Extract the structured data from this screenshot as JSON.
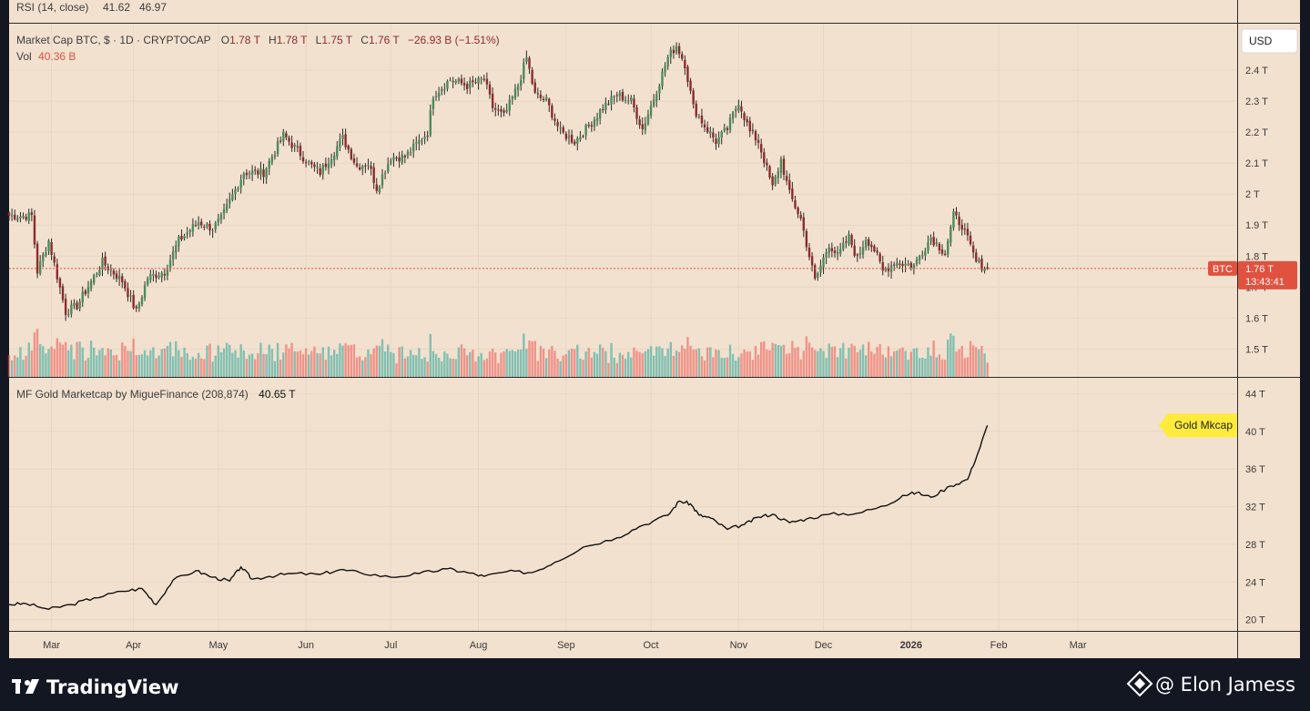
{
  "colors": {
    "background": "#f2e1cf",
    "frame": "#131722",
    "up": "#26a69a",
    "down": "#ef5350",
    "candle_up": "#4a8c5a",
    "candle_down": "#8c2b2b",
    "line": "#111111",
    "badge_btc": "#e0523f",
    "badge_gold": "#ffeb3b",
    "rsi_purple": "#7e57c2",
    "rsi_yellow": "#fbc02d"
  },
  "rsi_header": {
    "label": "RSI (14, close)",
    "value1": "41.62",
    "value2": "46.97"
  },
  "main_legend": {
    "title": "Market Cap BTC, $ · 1D · CRYPTOCAP",
    "o_label": "O",
    "o": "1.78 T",
    "h_label": "H",
    "h": "1.78 T",
    "l_label": "L",
    "l": "1.75 T",
    "c_label": "C",
    "c": "1.76 T",
    "change": "−26.93 B (−1.51%)",
    "vol_label": "Vol",
    "vol_value": "40.36 B"
  },
  "currency_button": "USD",
  "btc_badge": {
    "symbol": "BTC",
    "price": "1.76 T",
    "countdown": "13:43:41"
  },
  "gold_legend": {
    "title": "MF Gold Marketcap by MigueFinance (208,874)",
    "value": "40.65 T"
  },
  "gold_badge": "Gold Mkcap",
  "footer": {
    "brand": "TradingView",
    "credit": "@ Elon Jamess"
  },
  "chart_data": [
    {
      "type": "candlestick",
      "title": "Market Cap BTC, $ · 1D · CRYPTOCAP",
      "unit": "T USD",
      "ylim": [
        1.41,
        2.55
      ],
      "yticks": [
        "2.4 T",
        "2.3 T",
        "2.2 T",
        "2.1 T",
        "2 T",
        "1.9 T",
        "1.8 T",
        "1.7 T",
        "1.6 T",
        "1.5 T"
      ],
      "ytick_values": [
        2.4,
        2.3,
        2.2,
        2.1,
        2.0,
        1.9,
        1.8,
        1.7,
        1.6,
        1.5
      ],
      "x_labels": [
        "Mar",
        "Apr",
        "May",
        "Jun",
        "Jul",
        "Aug",
        "Sep",
        "Oct",
        "Nov",
        "Dec",
        "2026",
        "Feb",
        "Mar"
      ],
      "x_label_days": [
        15,
        44,
        74,
        105,
        135,
        166,
        197,
        227,
        258,
        288,
        319,
        350,
        378
      ],
      "last_price": 1.76,
      "close_path": [
        [
          0,
          1.93
        ],
        [
          8,
          1.93
        ],
        [
          10,
          1.75
        ],
        [
          14,
          1.85
        ],
        [
          20,
          1.62
        ],
        [
          24,
          1.64
        ],
        [
          33,
          1.78
        ],
        [
          40,
          1.72
        ],
        [
          45,
          1.62
        ],
        [
          49,
          1.73
        ],
        [
          55,
          1.75
        ],
        [
          60,
          1.85
        ],
        [
          67,
          1.91
        ],
        [
          72,
          1.89
        ],
        [
          75,
          1.92
        ],
        [
          83,
          2.07
        ],
        [
          90,
          2.07
        ],
        [
          97,
          2.19
        ],
        [
          107,
          2.09
        ],
        [
          110,
          2.07
        ],
        [
          118,
          2.18
        ],
        [
          123,
          2.09
        ],
        [
          127,
          2.1
        ],
        [
          130,
          2.02
        ],
        [
          135,
          2.12
        ],
        [
          140,
          2.12
        ],
        [
          148,
          2.2
        ],
        [
          150,
          2.32
        ],
        [
          156,
          2.37
        ],
        [
          162,
          2.35
        ],
        [
          168,
          2.37
        ],
        [
          171,
          2.28
        ],
        [
          175,
          2.25
        ],
        [
          180,
          2.35
        ],
        [
          183,
          2.44
        ],
        [
          186,
          2.32
        ],
        [
          190,
          2.3
        ],
        [
          195,
          2.2
        ],
        [
          200,
          2.17
        ],
        [
          205,
          2.22
        ],
        [
          210,
          2.28
        ],
        [
          215,
          2.32
        ],
        [
          220,
          2.3
        ],
        [
          224,
          2.21
        ],
        [
          228,
          2.31
        ],
        [
          233,
          2.44
        ],
        [
          236,
          2.48
        ],
        [
          239,
          2.42
        ],
        [
          242,
          2.28
        ],
        [
          246,
          2.22
        ],
        [
          250,
          2.17
        ],
        [
          254,
          2.21
        ],
        [
          258,
          2.3
        ],
        [
          262,
          2.2
        ],
        [
          265,
          2.17
        ],
        [
          270,
          2.02
        ],
        [
          273,
          2.11
        ],
        [
          276,
          2.0
        ],
        [
          280,
          1.92
        ],
        [
          285,
          1.72
        ],
        [
          290,
          1.84
        ],
        [
          293,
          1.8
        ],
        [
          297,
          1.86
        ],
        [
          300,
          1.79
        ],
        [
          303,
          1.86
        ],
        [
          306,
          1.82
        ],
        [
          309,
          1.75
        ],
        [
          313,
          1.78
        ],
        [
          320,
          1.77
        ],
        [
          326,
          1.86
        ],
        [
          331,
          1.81
        ],
        [
          334,
          1.93
        ],
        [
          337,
          1.9
        ],
        [
          342,
          1.78
        ],
        [
          346,
          1.76
        ]
      ],
      "volume_unit": "B USD"
    },
    {
      "type": "line",
      "title": "MF Gold Marketcap by MigueFinance (208,874)",
      "unit": "T USD",
      "ylim": [
        18.8,
        45.7
      ],
      "yticks": [
        "44 T",
        "40 T",
        "36 T",
        "32 T",
        "28 T",
        "24 T",
        "20 T"
      ],
      "ytick_values": [
        44,
        40,
        36,
        32,
        28,
        24,
        20
      ],
      "points": [
        [
          0,
          21.6
        ],
        [
          6,
          21.7
        ],
        [
          14,
          21.1
        ],
        [
          22,
          21.6
        ],
        [
          30,
          22.3
        ],
        [
          40,
          23.0
        ],
        [
          47,
          23.3
        ],
        [
          52,
          21.6
        ],
        [
          58,
          24.2
        ],
        [
          66,
          25.2
        ],
        [
          72,
          24.5
        ],
        [
          78,
          24.1
        ],
        [
          82,
          25.6
        ],
        [
          86,
          24.3
        ],
        [
          92,
          24.6
        ],
        [
          100,
          24.9
        ],
        [
          110,
          24.8
        ],
        [
          117,
          25.3
        ],
        [
          124,
          25.0
        ],
        [
          135,
          24.5
        ],
        [
          145,
          24.9
        ],
        [
          155,
          25.4
        ],
        [
          162,
          25.0
        ],
        [
          168,
          24.6
        ],
        [
          176,
          25.1
        ],
        [
          185,
          25.0
        ],
        [
          193,
          26.1
        ],
        [
          203,
          27.7
        ],
        [
          215,
          28.7
        ],
        [
          223,
          29.9
        ],
        [
          233,
          31.1
        ],
        [
          237,
          32.6
        ],
        [
          241,
          32.3
        ],
        [
          244,
          31.1
        ],
        [
          248,
          30.8
        ],
        [
          254,
          29.6
        ],
        [
          260,
          30.1
        ],
        [
          265,
          30.9
        ],
        [
          270,
          31.2
        ],
        [
          276,
          30.3
        ],
        [
          282,
          30.7
        ],
        [
          290,
          31.2
        ],
        [
          300,
          31.3
        ],
        [
          310,
          32.1
        ],
        [
          316,
          33.2
        ],
        [
          321,
          33.5
        ],
        [
          326,
          33.0
        ],
        [
          333,
          34.2
        ],
        [
          339,
          34.9
        ],
        [
          343,
          38.0
        ],
        [
          346,
          40.65
        ]
      ]
    }
  ]
}
